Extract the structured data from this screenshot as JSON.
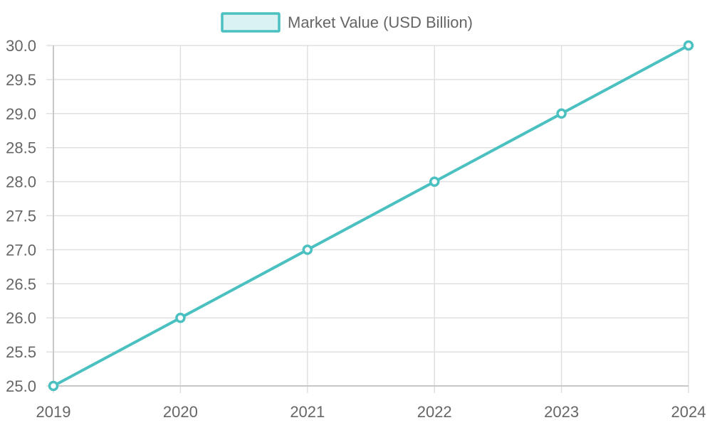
{
  "chart_data": {
    "type": "line",
    "categories": [
      "2019",
      "2020",
      "2021",
      "2022",
      "2023",
      "2024"
    ],
    "series": [
      {
        "name": "Market Value (USD Billion)",
        "values": [
          25.0,
          26.0,
          27.0,
          28.0,
          29.0,
          30.0
        ]
      }
    ],
    "ylim": [
      25.0,
      30.0
    ],
    "yticks": [
      "25.0",
      "25.5",
      "26.0",
      "26.5",
      "27.0",
      "27.5",
      "28.0",
      "28.5",
      "29.0",
      "29.5",
      "30.0"
    ],
    "grid": true,
    "legend_position": "top-center",
    "colors": {
      "line": "#4bc0c0",
      "fill": "#dbf2f2",
      "grid": "#e0e0e0",
      "axis": "#c8c8c8",
      "text": "#666666"
    }
  }
}
